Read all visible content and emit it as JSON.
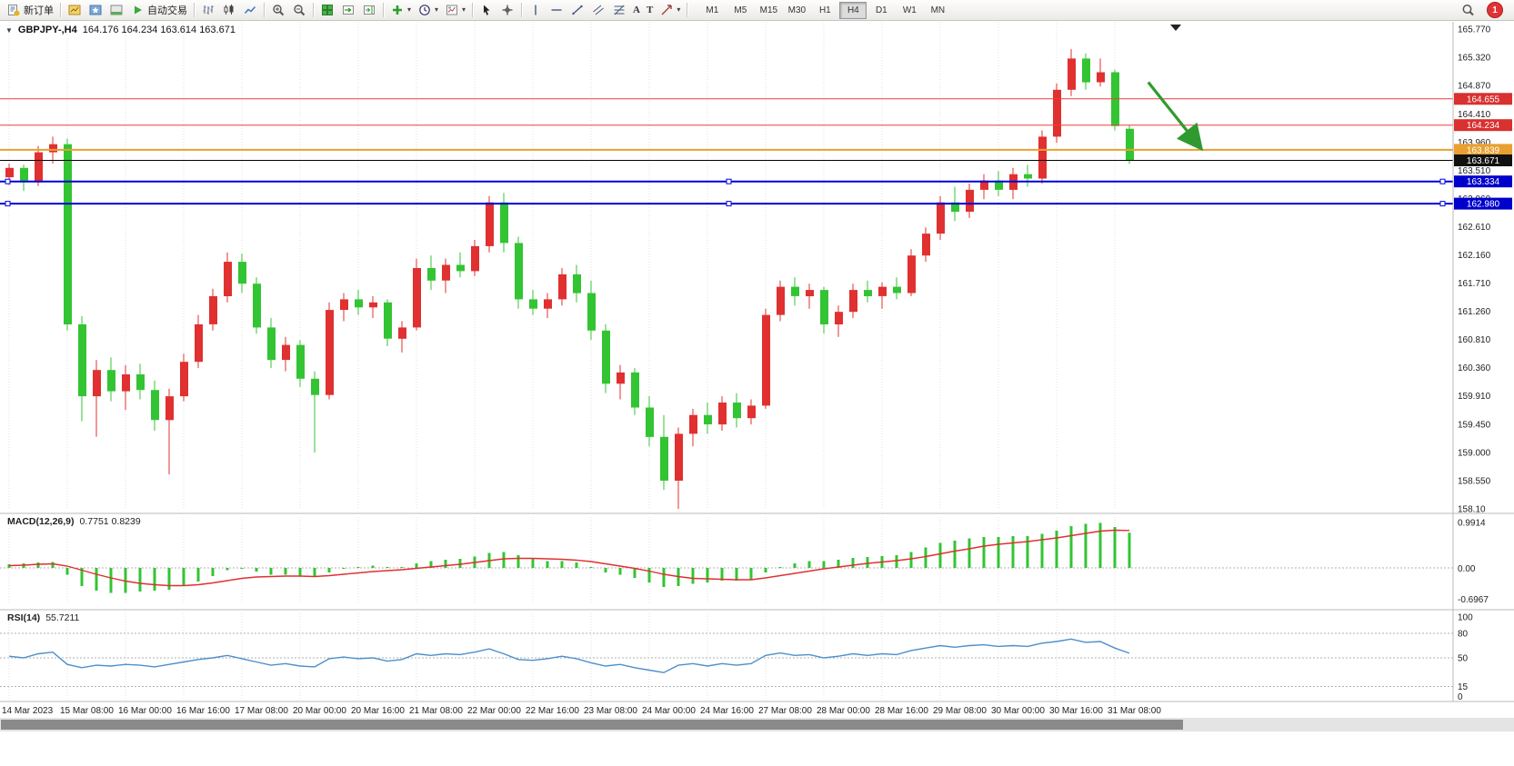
{
  "toolbar": {
    "new_order": "新订单",
    "auto_trading": "自动交易",
    "text_tool": "A",
    "label_tool": "T",
    "timeframes": [
      "M1",
      "M5",
      "M15",
      "M30",
      "H1",
      "H4",
      "D1",
      "W1",
      "MN"
    ],
    "active_timeframe": "H4",
    "notification_count": "1"
  },
  "chart": {
    "symbol_period": "GBPJPY-,H4",
    "ohlc_text": "164.176 164.234 163.614 163.671",
    "macd_label": "MACD(12,26,9)",
    "macd_values": "0.7751 0.8239",
    "rsi_label": "RSI(14)",
    "rsi_value": "55.7211"
  },
  "chart_data": {
    "type": "candlestick",
    "symbol": "GBPJPY-,H4",
    "ohlc_display": {
      "open": "164.176",
      "high": "164.234",
      "low": "163.614",
      "close": "163.671"
    },
    "price_axis": {
      "min": 158.1,
      "max": 165.77,
      "labels": [
        "165.770",
        "165.320",
        "164.870",
        "164.410",
        "163.960",
        "163.510",
        "163.060",
        "162.610",
        "162.160",
        "161.710",
        "161.260",
        "160.810",
        "160.360",
        "159.910",
        "159.450",
        "159.000",
        "158.550",
        "158.10"
      ]
    },
    "time_labels": [
      "14 Mar 2023",
      "15 Mar 08:00",
      "16 Mar 00:00",
      "16 Mar 16:00",
      "17 Mar 08:00",
      "20 Mar 00:00",
      "20 Mar 16:00",
      "21 Mar 08:00",
      "22 Mar 00:00",
      "22 Mar 16:00",
      "23 Mar 08:00",
      "24 Mar 00:00",
      "24 Mar 16:00",
      "27 Mar 08:00",
      "28 Mar 00:00",
      "28 Mar 16:00",
      "29 Mar 08:00",
      "30 Mar 00:00",
      "30 Mar 16:00",
      "31 Mar 08:00"
    ],
    "label_every": 4,
    "colors": {
      "up": "#e03030",
      "down": "#33c433",
      "macd_hist": "#33c433",
      "macd_signal": "#e03030",
      "rsi": "#4d8fcc",
      "grid": "#e2e2e2"
    },
    "candles": [
      [
        163.4,
        163.62,
        163.28,
        163.55
      ],
      [
        163.55,
        163.6,
        163.18,
        163.32
      ],
      [
        163.32,
        163.9,
        163.26,
        163.8
      ],
      [
        163.8,
        164.05,
        163.62,
        163.93
      ],
      [
        163.93,
        164.02,
        160.95,
        161.05
      ],
      [
        161.05,
        161.18,
        159.5,
        159.9
      ],
      [
        159.9,
        160.48,
        159.25,
        160.32
      ],
      [
        160.32,
        160.52,
        159.82,
        159.98
      ],
      [
        159.98,
        160.4,
        159.68,
        160.25
      ],
      [
        160.25,
        160.42,
        159.85,
        160.0
      ],
      [
        160.0,
        160.15,
        159.35,
        159.52
      ],
      [
        159.52,
        160.02,
        158.65,
        159.9
      ],
      [
        159.9,
        160.58,
        159.82,
        160.45
      ],
      [
        160.45,
        161.2,
        160.35,
        161.05
      ],
      [
        161.05,
        161.62,
        160.95,
        161.5
      ],
      [
        161.5,
        162.2,
        161.4,
        162.05
      ],
      [
        162.05,
        162.18,
        161.55,
        161.7
      ],
      [
        161.7,
        161.8,
        160.9,
        161.0
      ],
      [
        161.0,
        161.15,
        160.35,
        160.48
      ],
      [
        160.48,
        160.85,
        160.3,
        160.72
      ],
      [
        160.72,
        160.8,
        160.05,
        160.18
      ],
      [
        160.18,
        160.3,
        159.0,
        159.92
      ],
      [
        159.92,
        161.4,
        159.85,
        161.28
      ],
      [
        161.28,
        161.55,
        161.1,
        161.45
      ],
      [
        161.45,
        161.6,
        161.2,
        161.32
      ],
      [
        161.32,
        161.5,
        161.15,
        161.4
      ],
      [
        161.4,
        161.45,
        160.7,
        160.82
      ],
      [
        160.82,
        161.1,
        160.6,
        161.0
      ],
      [
        161.0,
        162.1,
        160.95,
        161.95
      ],
      [
        161.95,
        162.15,
        161.6,
        161.75
      ],
      [
        161.75,
        162.1,
        161.55,
        162.0
      ],
      [
        162.0,
        162.2,
        161.8,
        161.9
      ],
      [
        161.9,
        162.4,
        161.82,
        162.3
      ],
      [
        162.3,
        163.1,
        162.2,
        163.0
      ],
      [
        163.0,
        163.15,
        162.2,
        162.35
      ],
      [
        162.35,
        162.45,
        161.3,
        161.45
      ],
      [
        161.45,
        161.6,
        161.2,
        161.3
      ],
      [
        161.3,
        161.55,
        161.15,
        161.45
      ],
      [
        161.45,
        161.95,
        161.35,
        161.85
      ],
      [
        161.85,
        162.0,
        161.4,
        161.55
      ],
      [
        161.55,
        161.75,
        160.8,
        160.95
      ],
      [
        160.95,
        161.05,
        159.95,
        160.1
      ],
      [
        160.1,
        160.4,
        159.85,
        160.28
      ],
      [
        160.28,
        160.35,
        159.6,
        159.72
      ],
      [
        159.72,
        159.9,
        159.1,
        159.25
      ],
      [
        159.25,
        159.6,
        158.4,
        158.55
      ],
      [
        158.55,
        159.4,
        158.1,
        159.3
      ],
      [
        159.3,
        159.7,
        159.1,
        159.6
      ],
      [
        159.6,
        159.8,
        159.3,
        159.45
      ],
      [
        159.45,
        159.9,
        159.35,
        159.8
      ],
      [
        159.8,
        159.95,
        159.4,
        159.55
      ],
      [
        159.55,
        159.85,
        159.45,
        159.75
      ],
      [
        159.75,
        161.3,
        159.7,
        161.2
      ],
      [
        161.2,
        161.75,
        161.1,
        161.65
      ],
      [
        161.65,
        161.8,
        161.35,
        161.5
      ],
      [
        161.5,
        161.7,
        161.3,
        161.6
      ],
      [
        161.6,
        161.65,
        160.9,
        161.05
      ],
      [
        161.05,
        161.35,
        160.85,
        161.25
      ],
      [
        161.25,
        161.7,
        161.15,
        161.6
      ],
      [
        161.6,
        161.75,
        161.4,
        161.5
      ],
      [
        161.5,
        161.72,
        161.3,
        161.65
      ],
      [
        161.65,
        161.8,
        161.45,
        161.55
      ],
      [
        161.55,
        162.25,
        161.5,
        162.15
      ],
      [
        162.15,
        162.6,
        162.05,
        162.5
      ],
      [
        162.5,
        163.1,
        162.4,
        163.0
      ],
      [
        163.0,
        163.25,
        162.7,
        162.85
      ],
      [
        162.85,
        163.3,
        162.75,
        163.2
      ],
      [
        163.2,
        163.45,
        163.05,
        163.35
      ],
      [
        163.35,
        163.5,
        163.1,
        163.2
      ],
      [
        163.2,
        163.55,
        163.05,
        163.45
      ],
      [
        163.45,
        163.6,
        163.25,
        163.38
      ],
      [
        163.38,
        164.15,
        163.3,
        164.05
      ],
      [
        164.05,
        164.9,
        163.95,
        164.8
      ],
      [
        164.8,
        165.45,
        164.7,
        165.3
      ],
      [
        165.3,
        165.38,
        164.8,
        164.92
      ],
      [
        164.92,
        165.3,
        164.85,
        165.08
      ],
      [
        165.08,
        165.12,
        164.15,
        164.22
      ],
      [
        164.176,
        164.234,
        163.614,
        163.671
      ]
    ],
    "hlines": [
      {
        "price": 164.655,
        "color": "#f23b3b",
        "tag_bg": "#d93030",
        "label": "164.655",
        "width": 1
      },
      {
        "price": 164.234,
        "color": "#f23b3b",
        "tag_bg": "#d93030",
        "label": "164.234",
        "width": 1
      },
      {
        "price": 163.839,
        "color": "#e8a030",
        "tag_bg": "#e8a030",
        "label": "163.839",
        "width": 2
      },
      {
        "price": 163.671,
        "color": "#000000",
        "tag_bg": "#111111",
        "label": "163.671",
        "width": 1
      },
      {
        "price": 163.334,
        "color": "#0000dd",
        "tag_bg": "#0000cc",
        "label": "163.334",
        "width": 2,
        "handles": true
      },
      {
        "price": 162.98,
        "color": "#0000dd",
        "tag_bg": "#0000cc",
        "label": "162.980",
        "width": 2,
        "handles": true
      }
    ],
    "arrow": {
      "from_candle": 78.3,
      "from_price": 164.92,
      "to_candle": 81.7,
      "to_price": 163.93,
      "color": "#2f9b2f"
    },
    "macd": {
      "label": "MACD(12,26,9)",
      "values_text": "0.7751 0.8239",
      "max": 0.9914,
      "min": -0.6967,
      "axis_labels": [
        "0.9914",
        "0.00",
        "-0.6967"
      ],
      "main": [
        0.08,
        0.1,
        0.12,
        0.13,
        -0.15,
        -0.4,
        -0.5,
        -0.55,
        -0.55,
        -0.52,
        -0.5,
        -0.48,
        -0.4,
        -0.3,
        -0.18,
        -0.05,
        -0.02,
        -0.08,
        -0.15,
        -0.15,
        -0.18,
        -0.2,
        -0.1,
        -0.02,
        0.02,
        0.05,
        0.02,
        0.02,
        0.1,
        0.15,
        0.18,
        0.2,
        0.25,
        0.33,
        0.35,
        0.28,
        0.2,
        0.15,
        0.15,
        0.12,
        0.02,
        -0.1,
        -0.15,
        -0.22,
        -0.32,
        -0.42,
        -0.4,
        -0.35,
        -0.32,
        -0.28,
        -0.28,
        -0.25,
        -0.1,
        0.02,
        0.1,
        0.15,
        0.15,
        0.18,
        0.22,
        0.24,
        0.26,
        0.28,
        0.35,
        0.45,
        0.55,
        0.6,
        0.65,
        0.68,
        0.68,
        0.7,
        0.7,
        0.75,
        0.82,
        0.92,
        0.97,
        0.9914,
        0.9,
        0.7751
      ],
      "signal": [
        0.05,
        0.06,
        0.08,
        0.09,
        0.04,
        -0.05,
        -0.14,
        -0.22,
        -0.29,
        -0.34,
        -0.37,
        -0.39,
        -0.39,
        -0.37,
        -0.33,
        -0.28,
        -0.23,
        -0.2,
        -0.19,
        -0.18,
        -0.18,
        -0.19,
        -0.17,
        -0.14,
        -0.11,
        -0.08,
        -0.06,
        -0.04,
        -0.01,
        0.02,
        0.05,
        0.08,
        0.12,
        0.16,
        0.2,
        0.21,
        0.21,
        0.2,
        0.19,
        0.17,
        0.14,
        0.09,
        0.04,
        -0.01,
        -0.07,
        -0.14,
        -0.19,
        -0.23,
        -0.24,
        -0.25,
        -0.26,
        -0.26,
        -0.22,
        -0.17,
        -0.12,
        -0.07,
        -0.02,
        0.02,
        0.06,
        0.1,
        0.13,
        0.16,
        0.2,
        0.25,
        0.31,
        0.37,
        0.42,
        0.48,
        0.52,
        0.55,
        0.58,
        0.62,
        0.66,
        0.71,
        0.76,
        0.81,
        0.83,
        0.8239
      ]
    },
    "rsi": {
      "label": "RSI(14)",
      "value_text": "55.7211",
      "levels": [
        80,
        50,
        15
      ],
      "axis_labels": [
        "100",
        "80",
        "50",
        "15",
        "0"
      ],
      "values": [
        52,
        50,
        55,
        57,
        42,
        38,
        41,
        40,
        42,
        41,
        39,
        42,
        45,
        48,
        50,
        53,
        49,
        45,
        41,
        43,
        40,
        39,
        49,
        51,
        49,
        50,
        46,
        48,
        55,
        53,
        55,
        54,
        57,
        61,
        55,
        48,
        47,
        49,
        52,
        49,
        44,
        40,
        42,
        38,
        35,
        32,
        41,
        43,
        40,
        43,
        41,
        43,
        53,
        56,
        53,
        54,
        50,
        52,
        55,
        53,
        55,
        54,
        59,
        62,
        65,
        63,
        65,
        66,
        64,
        65,
        64,
        68,
        70,
        73,
        69,
        70,
        62,
        55.72
      ]
    }
  }
}
